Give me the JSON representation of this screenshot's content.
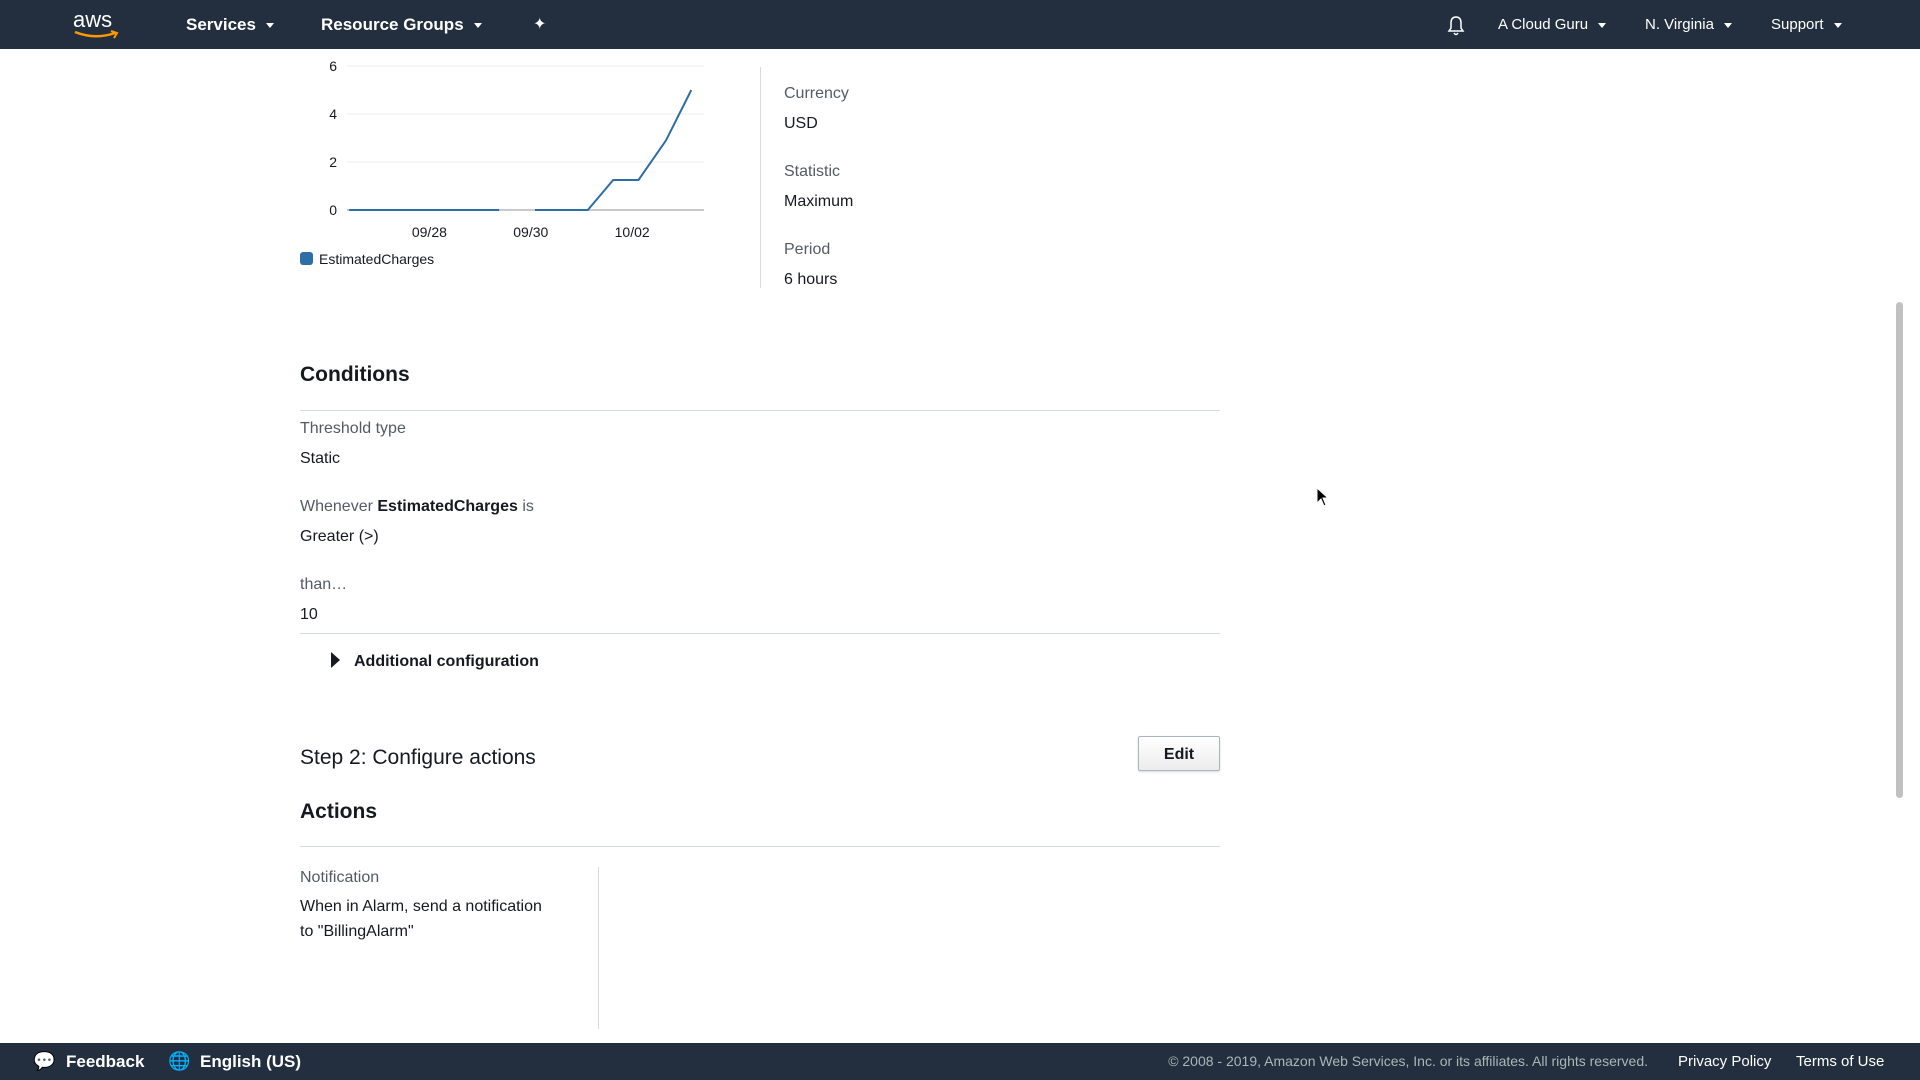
{
  "topnav": {
    "logo": "aws",
    "services": "Services",
    "resource_groups": "Resource Groups",
    "pin_icon": "pushpin-icon",
    "bell_icon": "bell-icon",
    "account": "A Cloud Guru",
    "region": "N. Virginia",
    "support": "Support"
  },
  "metric_details": {
    "currency_label": "Currency",
    "currency_value": "USD",
    "statistic_label": "Statistic",
    "statistic_value": "Maximum",
    "period_label": "Period",
    "period_value": "6 hours"
  },
  "conditions": {
    "title": "Conditions",
    "threshold_type_label": "Threshold type",
    "threshold_type_value": "Static",
    "whenever_prefix": "Whenever",
    "whenever_metric": "EstimatedCharges",
    "whenever_suffix": "is",
    "comparison_value": "Greater (>)",
    "than_label": "than…",
    "than_value": "10",
    "additional_config": "Additional configuration"
  },
  "step2": {
    "title": "Step 2: Configure actions",
    "edit_label": "Edit",
    "actions_title": "Actions",
    "notification_label": "Notification",
    "notification_line1": "When in Alarm, send a notification",
    "notification_line2": "to \"BillingAlarm\""
  },
  "footer": {
    "feedback": "Feedback",
    "language": "English (US)",
    "copyright": "© 2008 - 2019, Amazon Web Services, Inc. or its affiliates. All rights reserved.",
    "privacy": "Privacy Policy",
    "terms": "Terms of Use"
  },
  "colors": {
    "nav_bg": "#232f3e",
    "series": "#2e6ea6",
    "aws_orange": "#ff9900"
  },
  "chart_data": {
    "type": "line",
    "ylim": [
      0,
      6
    ],
    "yticks": [
      "0",
      "2",
      "4",
      "6"
    ],
    "xticks": [
      "09/28",
      "09/30",
      "10/02"
    ],
    "xlim": [
      "09/26 09:00",
      "10/03 10:00"
    ],
    "grid": true,
    "legend": "bottom-left",
    "series": [
      {
        "name": "EstimatedCharges",
        "segments": [
          [
            [
              "09/26 10:00",
              0
            ],
            [
              "09/29 09:00",
              0
            ]
          ],
          [
            [
              "09/30 02:00",
              0
            ],
            [
              "10/01 03:00",
              0
            ],
            [
              "10/01 15:00",
              1.25
            ],
            [
              "10/02 03:00",
              1.25
            ],
            [
              "10/02 16:00",
              2.9
            ],
            [
              "10/03 04:00",
              5
            ]
          ]
        ]
      }
    ]
  }
}
